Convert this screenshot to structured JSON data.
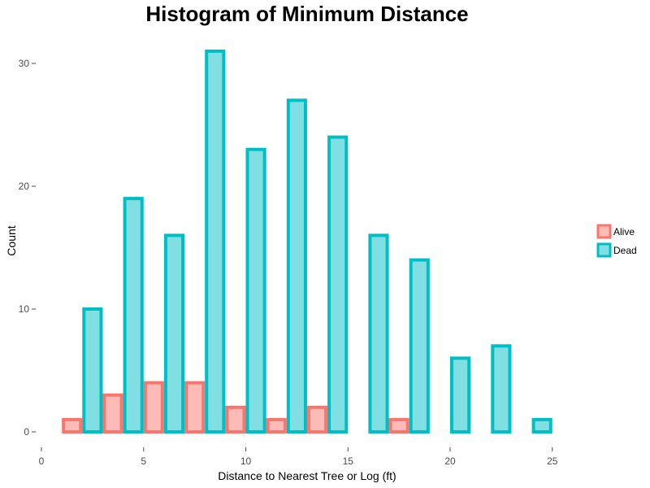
{
  "chart_data": {
    "type": "bar",
    "title": "Histogram of Minimum Distance",
    "xlabel": "Distance to Nearest Tree or Log (ft)",
    "ylabel": "Count",
    "xlim": [
      0,
      25
    ],
    "ylim": [
      0,
      31
    ],
    "x_ticks": [
      0,
      5,
      10,
      15,
      20,
      25
    ],
    "y_ticks": [
      0,
      10,
      20,
      30
    ],
    "bin_width": 1,
    "grid": false,
    "legend_position": "right",
    "series": [
      {
        "name": "Alive",
        "fill": "#F8766D",
        "x": [
          1.5,
          3.5,
          5.5,
          7.5,
          9.5,
          11.5,
          13.5,
          15.5,
          17.5,
          19.5,
          21.5,
          23.5
        ],
        "values": [
          1,
          3,
          4,
          4,
          2,
          1,
          2,
          0,
          1,
          0,
          0,
          0
        ]
      },
      {
        "name": "Dead",
        "fill": "#00BFC4",
        "x": [
          2.5,
          4.5,
          6.5,
          8.5,
          10.5,
          12.5,
          14.5,
          16.5,
          18.5,
          20.5,
          22.5,
          24.5
        ],
        "values": [
          10,
          19,
          16,
          31,
          23,
          27,
          24,
          16,
          14,
          6,
          7,
          1
        ]
      }
    ]
  }
}
